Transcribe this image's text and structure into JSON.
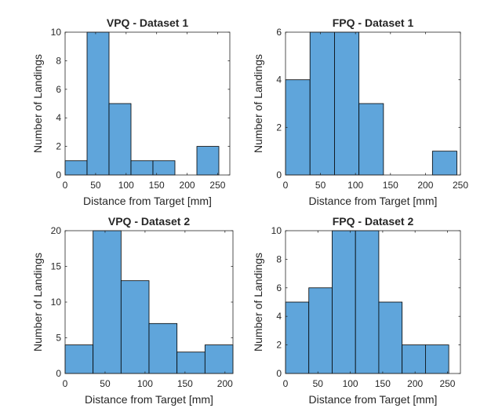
{
  "chart_data": [
    {
      "type": "bar",
      "title": "VPQ - Dataset 1",
      "xlabel": "Distance from Target [mm]",
      "ylabel": "Number of Landings",
      "bin_edges": [
        0,
        36,
        72,
        108,
        144,
        180,
        216,
        252
      ],
      "values": [
        1,
        10,
        5,
        1,
        1,
        0,
        2
      ],
      "xlim": [
        0,
        270
      ],
      "ylim": [
        0,
        10
      ],
      "xticks": [
        0,
        50,
        100,
        150,
        200,
        250
      ],
      "yticks": [
        0,
        2,
        4,
        6,
        8,
        10
      ],
      "bar_color": "#5fa5db",
      "grid": false
    },
    {
      "type": "bar",
      "title": "FPQ - Dataset 1",
      "xlabel": "Distance from Target [mm]",
      "ylabel": "Number of Landings",
      "bin_edges": [
        0,
        35,
        70,
        105,
        140,
        175,
        210,
        245
      ],
      "values": [
        4,
        6,
        6,
        3,
        0,
        0,
        1
      ],
      "xlim": [
        0,
        250
      ],
      "ylim": [
        0,
        6
      ],
      "xticks": [
        0,
        50,
        100,
        150,
        200,
        250
      ],
      "yticks": [
        0,
        2,
        4,
        6
      ],
      "bar_color": "#5fa5db",
      "grid": false
    },
    {
      "type": "bar",
      "title": "VPQ - Dataset 2",
      "xlabel": "Distance from Target [mm]",
      "ylabel": "Number of Landings",
      "bin_edges": [
        0,
        35,
        70,
        105,
        140,
        175,
        210
      ],
      "values": [
        4,
        20,
        13,
        7,
        3,
        4
      ],
      "xlim": [
        0,
        210
      ],
      "ylim": [
        0,
        20
      ],
      "xticks": [
        0,
        50,
        100,
        150,
        200
      ],
      "yticks": [
        0,
        5,
        10,
        15,
        20
      ],
      "bar_color": "#5fa5db",
      "grid": false
    },
    {
      "type": "bar",
      "title": "FPQ - Dataset 2",
      "xlabel": "Distance from Target [mm]",
      "ylabel": "Number of Landings",
      "bin_edges": [
        0,
        36,
        72,
        108,
        144,
        180,
        216,
        252
      ],
      "values": [
        5,
        6,
        10,
        10,
        5,
        2,
        2
      ],
      "xlim": [
        0,
        270
      ],
      "ylim": [
        0,
        10
      ],
      "xticks": [
        0,
        50,
        100,
        150,
        200,
        250
      ],
      "yticks": [
        0,
        2,
        4,
        6,
        8,
        10
      ],
      "bar_color": "#5fa5db",
      "grid": false
    }
  ]
}
